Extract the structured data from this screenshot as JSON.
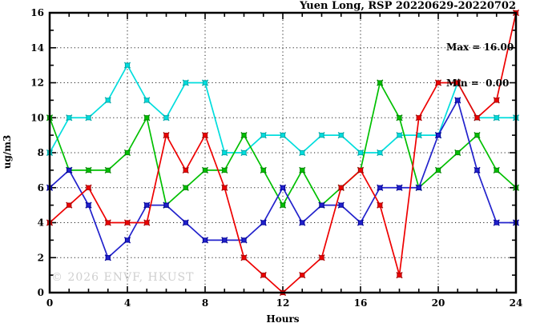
{
  "title": "Yuen Long, RSP 20220629-20220702",
  "stats": {
    "max_label": "Max = 16.00",
    "min_label": "Min =  0.00"
  },
  "watermark": "© 2026 ENVF, HKUST",
  "chart_data": {
    "type": "line",
    "title": "Yuen Long, RSP 20220629-20220702",
    "xlabel": "Hours",
    "ylabel": "ug/m3",
    "xlim": [
      0,
      24
    ],
    "ylim": [
      0,
      16
    ],
    "x_major_ticks": [
      0,
      4,
      8,
      12,
      16,
      20,
      24
    ],
    "y_major_ticks": [
      0,
      2,
      4,
      6,
      8,
      10,
      12,
      14,
      16
    ],
    "grid": true,
    "legend": "none",
    "annotations": [
      "Max = 16.00",
      "Min =  0.00"
    ],
    "x": [
      0,
      1,
      2,
      3,
      4,
      5,
      6,
      7,
      8,
      9,
      10,
      11,
      12,
      13,
      14,
      15,
      16,
      17,
      18,
      19,
      20,
      21,
      22,
      23,
      24
    ],
    "series": [
      {
        "name": "cyan-series",
        "color": "#00dddd",
        "marker_color": "#00aaaa",
        "values": [
          8,
          10,
          10,
          11,
          13,
          11,
          10,
          12,
          12,
          8,
          8,
          9,
          9,
          8,
          9,
          9,
          8,
          8,
          9,
          9,
          9,
          12,
          10,
          10,
          10
        ]
      },
      {
        "name": "green-series",
        "color": "#00c000",
        "marker_color": "#008800",
        "values": [
          10,
          7,
          7,
          7,
          8,
          10,
          5,
          6,
          7,
          7,
          9,
          7,
          5,
          7,
          5,
          6,
          7,
          12,
          10,
          6,
          7,
          8,
          9,
          7,
          6
        ]
      },
      {
        "name": "blue-series",
        "color": "#2222cc",
        "marker_color": "#000099",
        "values": [
          6,
          7,
          5,
          2,
          3,
          5,
          5,
          4,
          3,
          3,
          3,
          4,
          6,
          4,
          5,
          5,
          4,
          6,
          6,
          6,
          9,
          11,
          7,
          4,
          4
        ]
      },
      {
        "name": "red-series",
        "color": "#ee0000",
        "marker_color": "#aa0000",
        "values": [
          4,
          5,
          6,
          4,
          4,
          4,
          9,
          7,
          9,
          6,
          2,
          1,
          0,
          1,
          2,
          6,
          7,
          5,
          1,
          10,
          12,
          12,
          10,
          11,
          16
        ]
      }
    ]
  }
}
